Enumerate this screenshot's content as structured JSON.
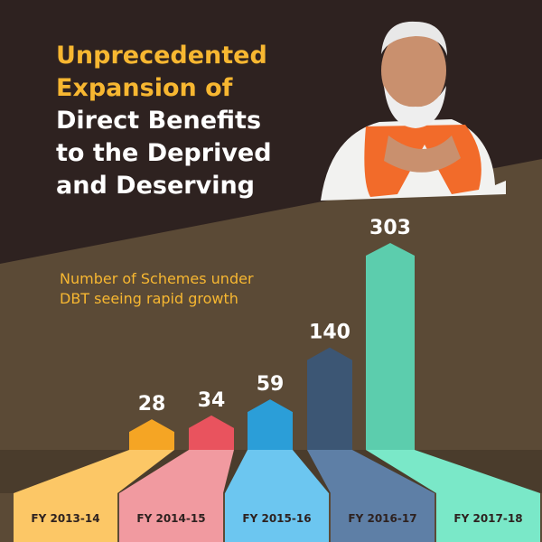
{
  "chart_data": {
    "type": "bar",
    "title_highlight": "Unprecedented Expansion of",
    "title_rest": "Direct Benefits to the Deprived and Deserving",
    "subtitle": "Number of Schemes under DBT seeing rapid growth",
    "categories": [
      "FY 2013-14",
      "FY 2014-15",
      "FY 2015-16",
      "FY 2016-17",
      "FY 2017-18"
    ],
    "values": [
      28,
      34,
      59,
      140,
      303
    ],
    "colors": [
      "#f5a524",
      "#e9535e",
      "#2b9ed8",
      "#3c5674",
      "#5ccdad"
    ],
    "label_colors": [
      "#fcc766",
      "#f19aa0",
      "#6cc6f0",
      "#5e7fa6",
      "#7ae8c8"
    ]
  }
}
